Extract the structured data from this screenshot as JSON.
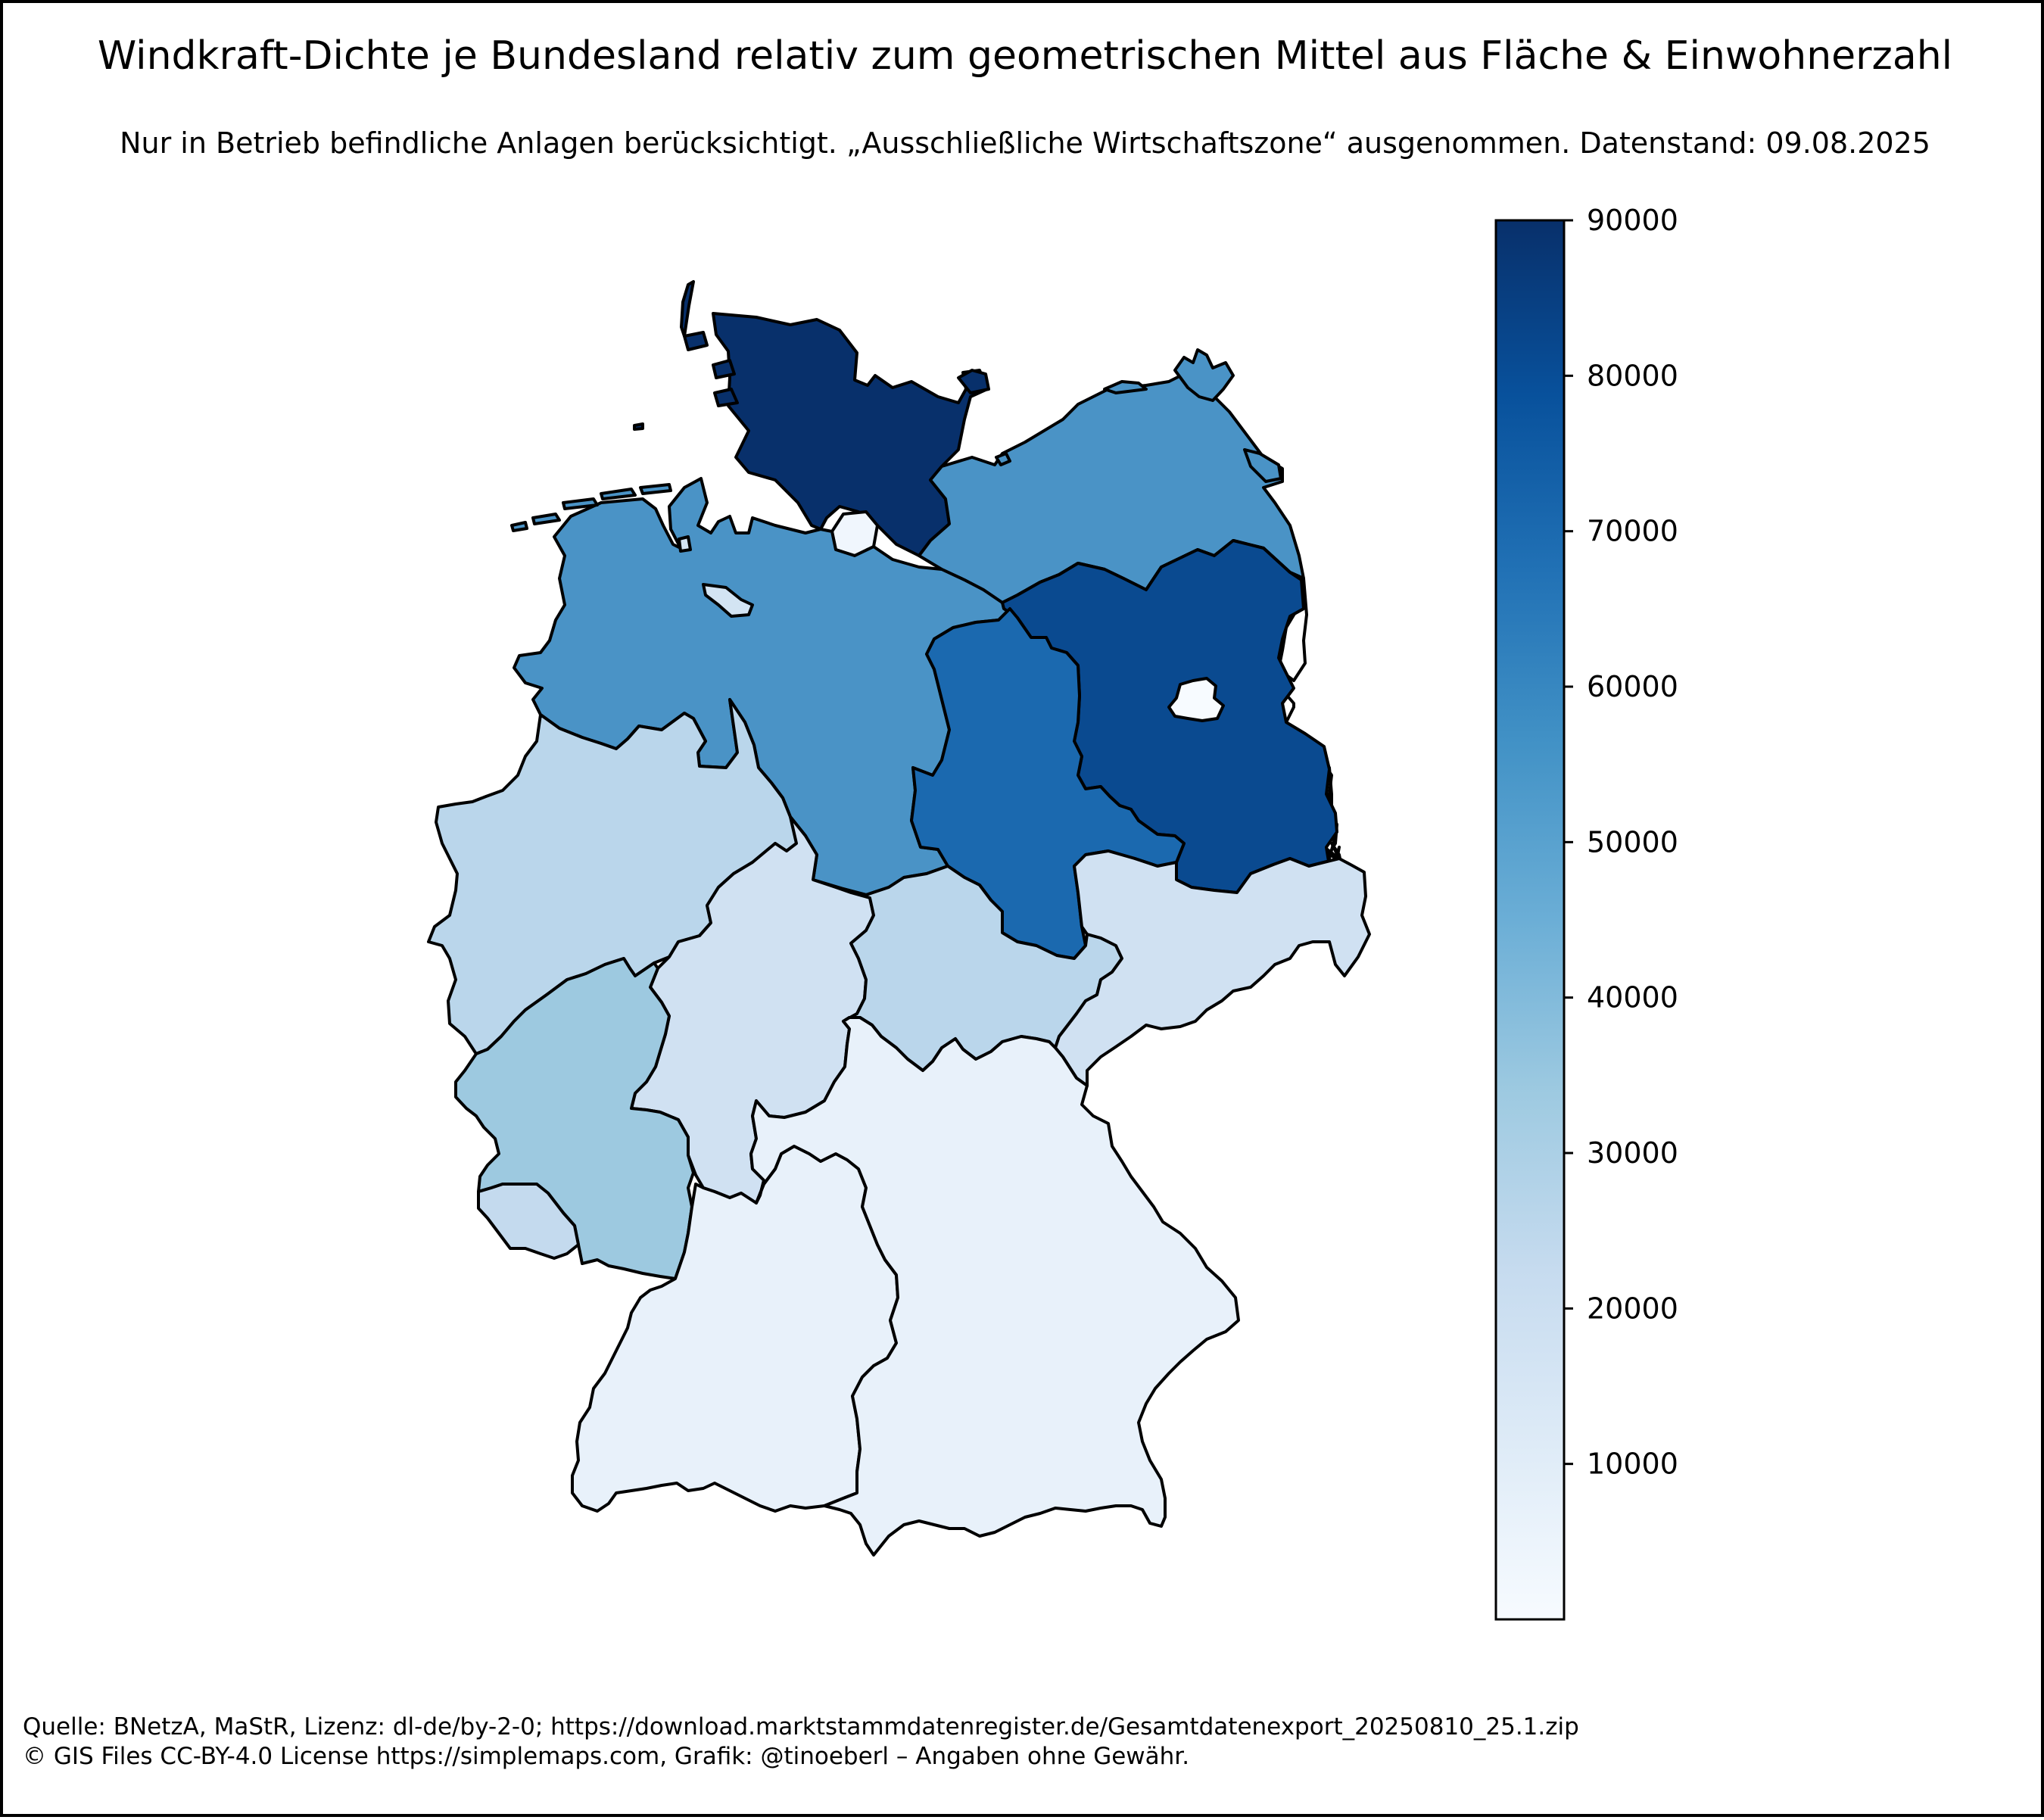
{
  "title": "Windkraft-Dichte je Bundesland relativ zum geometrischen Mittel aus Fläche & Einwohnerzahl",
  "subtitle": "Nur in Betrieb befindliche Anlagen berücksichtigt. „Ausschließliche Wirtschaftszone“ ausgenommen. Datenstand: 09.08.2025",
  "footer": {
    "line1": "Quelle: BNetzA, MaStR, Lizenz: dl-de/by-2-0; https://download.marktstammdatenregister.de/Gesamtdatenexport_20250810_25.1.zip",
    "line2": "© GIS Files CC-BY-4.0 License https://simplemaps.com, Grafik: @tinoeberl – Angaben ohne Gewähr."
  },
  "colorbar": {
    "colormap": "Blues",
    "min": 0,
    "max": 90000,
    "ticks": [
      10000,
      20000,
      30000,
      40000,
      50000,
      60000,
      70000,
      80000,
      90000
    ],
    "tick_labels": [
      "10000",
      "20000",
      "30000",
      "40000",
      "50000",
      "60000",
      "70000",
      "80000",
      "90000"
    ],
    "stops": [
      "#f7fbff",
      "#deebf7",
      "#c6dbef",
      "#9ecae1",
      "#6baed6",
      "#4292c6",
      "#2171b5",
      "#08519c",
      "#08306b"
    ]
  },
  "regions": [
    {
      "id": "schleswig-holstein",
      "value": 89000,
      "color": "#08306b"
    },
    {
      "id": "hamburg",
      "value": 1500,
      "color": "#f0f6fd"
    },
    {
      "id": "mecklenburg-vorpommern",
      "value": 54000,
      "color": "#4a93c6"
    },
    {
      "id": "niedersachsen",
      "value": 54000,
      "color": "#4a93c6"
    },
    {
      "id": "bremen",
      "value": 16000,
      "color": "#d3e4f3"
    },
    {
      "id": "brandenburg",
      "value": 79000,
      "color": "#0a4a90"
    },
    {
      "id": "berlin",
      "value": 200,
      "color": "#f7fbff"
    },
    {
      "id": "sachsen-anhalt",
      "value": 71000,
      "color": "#1b69af"
    },
    {
      "id": "nordrhein-westfalen",
      "value": 29000,
      "color": "#bad6eb"
    },
    {
      "id": "hessen",
      "value": 17000,
      "color": "#d0e1f2"
    },
    {
      "id": "thueringen",
      "value": 29000,
      "color": "#bad6eb"
    },
    {
      "id": "sachsen",
      "value": 17000,
      "color": "#d0e1f2"
    },
    {
      "id": "rheinland-pfalz",
      "value": 36000,
      "color": "#9dc9e0"
    },
    {
      "id": "saarland",
      "value": 22000,
      "color": "#c4daee"
    },
    {
      "id": "baden-wuerttemberg",
      "value": 8000,
      "color": "#e8f1fa"
    },
    {
      "id": "bayern",
      "value": 8000,
      "color": "#e8f1fa"
    }
  ]
}
